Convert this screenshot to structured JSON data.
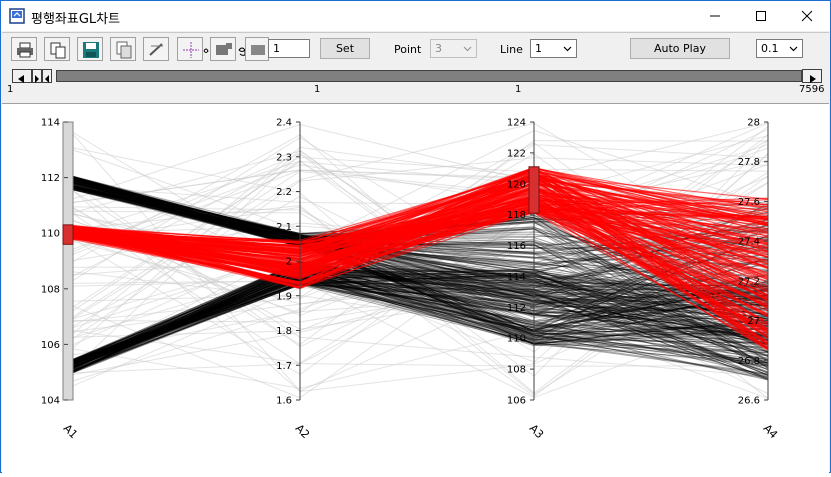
{
  "window": {
    "title": "평행좌표GL차트"
  },
  "toolbar": {
    "value_input": "1",
    "set_label": "Set",
    "point_label": "Point",
    "point_value": "3",
    "line_label": "Line",
    "line_value": "1",
    "autoplay_label": "Auto Play",
    "speed_value": "0.1"
  },
  "slider": {
    "tick_start": "1",
    "tick_mid1": "1",
    "tick_mid2": "1",
    "tick_end": "7596"
  },
  "colors": {
    "selected": "#ff0000",
    "unselected": "#000000",
    "context": "#cccccc",
    "brush": "#d83030"
  },
  "chart_data": {
    "type": "parallel-coordinates",
    "axes": [
      {
        "name": "A1",
        "range": [
          104,
          114
        ],
        "ticks": [
          "104",
          "106",
          "108",
          "110",
          "112",
          "114"
        ],
        "brush": [
          109.6,
          110.3
        ]
      },
      {
        "name": "A2",
        "range": [
          1.6,
          2.4
        ],
        "ticks": [
          "1.6",
          "1.7",
          "1.8",
          "1.9",
          "2",
          "2.1",
          "2.2",
          "2.3",
          "2.4"
        ]
      },
      {
        "name": "A3",
        "range": [
          106,
          124
        ],
        "ticks": [
          "106",
          "108",
          "110",
          "112",
          "114",
          "116",
          "118",
          "120",
          "122",
          "124"
        ],
        "brush": [
          118.1,
          121.1
        ]
      },
      {
        "name": "A4",
        "range": [
          26.6,
          28
        ],
        "ticks": [
          "26.6",
          "26.8",
          "27",
          "27.2",
          "27.4",
          "27.6",
          "27.8",
          "28"
        ]
      }
    ],
    "selected_bands": [
      {
        "A1": [
          109.8,
          110.3
        ],
        "A2": [
          1.92,
          2.06
        ],
        "A3": [
          118.1,
          121.1
        ],
        "A4": [
          26.85,
          27.62
        ]
      }
    ],
    "unselected_bands": [
      {
        "A1": [
          111.6,
          112.1
        ],
        "A2": [
          2.04,
          2.08
        ],
        "A3": [
          109.5,
          118.5
        ],
        "A4": [
          26.75,
          27.6
        ]
      },
      {
        "A1": [
          104.9,
          105.4
        ],
        "A2": [
          1.93,
          2.0
        ],
        "A3": [
          109.5,
          114.5
        ],
        "A4": [
          26.7,
          27.2
        ]
      }
    ]
  }
}
